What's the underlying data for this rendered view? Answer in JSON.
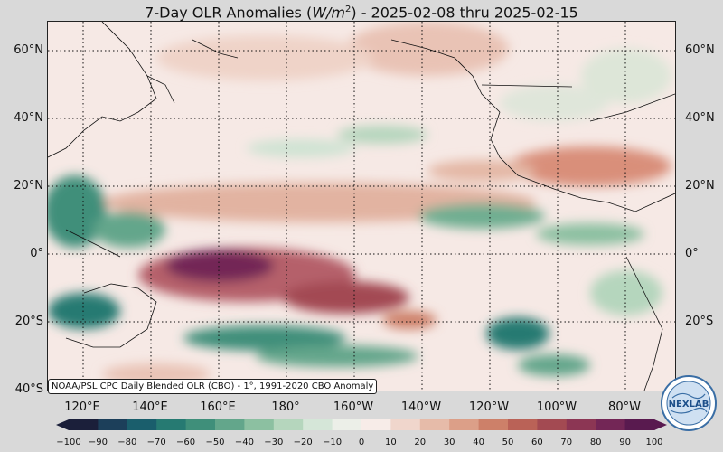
{
  "title": {
    "prefix": "7-Day OLR Anomalies (",
    "unit": "W/m",
    "unit_power": "2",
    "suffix": ") - 2025-02-08 thru 2025-02-15"
  },
  "lat_labels": [
    "60°N",
    "40°N",
    "20°N",
    "0°",
    "20°S",
    "40°S"
  ],
  "lon_labels": [
    "120°E",
    "140°E",
    "160°E",
    "180°",
    "160°W",
    "140°W",
    "120°W",
    "100°W",
    "80°W"
  ],
  "source_note": "NOAA/PSL CPC Daily Blended OLR (CBO) - 1°, 1991-2020 CBO Anomaly",
  "colorbar": {
    "ticks": [
      "−100",
      "−90",
      "−80",
      "−70",
      "−60",
      "−50",
      "−40",
      "−30",
      "−20",
      "−10",
      "0",
      "10",
      "20",
      "30",
      "40",
      "50",
      "60",
      "70",
      "80",
      "90",
      "100"
    ],
    "colors": [
      "#1b1f3a",
      "#1c3f5a",
      "#1a5e6c",
      "#267a72",
      "#3f8f7a",
      "#63a68b",
      "#8cc0a1",
      "#b5d6bd",
      "#d5e6d8",
      "#ecefe8",
      "#f7ece8",
      "#f0d6cc",
      "#e6bba9",
      "#dc9f88",
      "#cd8069",
      "#ba6257",
      "#a34a52",
      "#8c3654",
      "#732656",
      "#591a4f"
    ]
  },
  "logo": {
    "text": "NEXLAB",
    "icon": "globe-logo-icon"
  }
}
